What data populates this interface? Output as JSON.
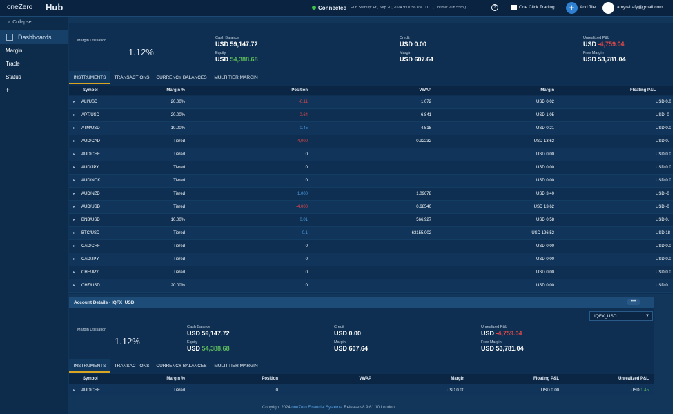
{
  "topbar": {
    "logo": "oneZero",
    "product": "Hub",
    "status": "Connected",
    "startup": "Hub Startup: Fri, Sep 20, 2024 9:07:56 PM UTC ( Uptime: 20h 55m )",
    "help": "?",
    "one_click": "One Click Trading",
    "add_tile": "Add Tile",
    "user": "amyralrafy@gmail.com"
  },
  "sidebar": {
    "collapse": "Collapse",
    "dashboards": "Dashboards",
    "items": [
      "Margin",
      "Trade",
      "Status",
      "+"
    ]
  },
  "panel1": {
    "summary": {
      "utilisation": {
        "label": "Margin Utilisation",
        "value": "1.12%"
      },
      "items": [
        {
          "label": "Cash Balance",
          "currency": "USD",
          "amount": "59,147.72"
        },
        {
          "label": "Equity",
          "currency": "USD",
          "amount": "54,388.68"
        },
        {
          "label": "Credit",
          "currency": "USD",
          "amount": "0.00"
        },
        {
          "label": "Margin",
          "currency": "USD",
          "amount": "607.64"
        },
        {
          "label": "Unrealized P&L",
          "currency": "USD",
          "amount": "-4,759.04"
        },
        {
          "label": "Free Margin",
          "currency": "USD",
          "amount": "53,781.04"
        }
      ]
    },
    "tabs": [
      "INSTRUMENTS",
      "TRANSACTIONS",
      "CURRENCY BALANCES",
      "MULTI TIER MARGIN"
    ],
    "columns": [
      "Symbol",
      "Margin %",
      "Position",
      "VWAP",
      "Margin",
      "Floating P&L"
    ],
    "rows": [
      [
        "ALI/USD",
        "20.00%",
        "-0.11",
        "1.072",
        "USD 0.02",
        "USD 0.0"
      ],
      [
        "APT/USD",
        "20.00%",
        "-0.64",
        "6.841",
        "USD 1.05",
        "USD -0"
      ],
      [
        "ATM/USD",
        "10.00%",
        "0.45",
        "4.518",
        "USD 0.21",
        "USD 0.0"
      ],
      [
        "AUD/CAD",
        "Tiered",
        "-4,000",
        "0.92232",
        "USD 13.62",
        "USD 0."
      ],
      [
        "AUD/CHF",
        "Tiered",
        "0",
        null,
        "USD 0.00",
        "USD 0.0"
      ],
      [
        "AUD/JPY",
        "Tiered",
        "0",
        null,
        "USD 0.00",
        "USD 0.0"
      ],
      [
        "AUD/NOK",
        "Tiered",
        "0",
        null,
        "USD 0.00",
        "USD 0.0"
      ],
      [
        "AUD/NZD",
        "Tiered",
        "1,000",
        "1.09678",
        "USD 3.40",
        "USD -0"
      ],
      [
        "AUD/USD",
        "Tiered",
        "-4,000",
        "0.68540",
        "USD 13.62",
        "USD -0"
      ],
      [
        "BNB/USD",
        "10.00%",
        "0.01",
        "566.927",
        "USD 0.58",
        "USD 0."
      ],
      [
        "BTC/USD",
        "Tiered",
        "0.1",
        "63155.002",
        "USD 126.52",
        "USD 18"
      ],
      [
        "CAD/CHF",
        "Tiered",
        "0",
        null,
        "USD 0.00",
        "USD 0.0"
      ],
      [
        "CAD/JPY",
        "Tiered",
        "0",
        null,
        "USD 0.00",
        "USD 0.0"
      ],
      [
        "CHF/JPY",
        "Tiered",
        "0",
        null,
        "USD 0.00",
        "USD 0.0"
      ],
      [
        "CHZ/USD",
        "20.00%",
        "0",
        null,
        "USD 0.00",
        "USD 0."
      ]
    ]
  },
  "panel2": {
    "title": "Account Details - IQFX_USD",
    "selector": "IQFX_USD",
    "summary": {
      "utilisation": {
        "label": "Margin Utilisation",
        "value": "1.12%"
      },
      "items": [
        {
          "label": "Cash Balance",
          "currency": "USD",
          "amount": "59,147.72"
        },
        {
          "label": "Equity",
          "currency": "USD",
          "amount": "54,388.68"
        },
        {
          "label": "Credit",
          "currency": "USD",
          "amount": "0.00"
        },
        {
          "label": "Margin",
          "currency": "USD",
          "amount": "607.64"
        },
        {
          "label": "Unrealized P&L",
          "currency": "USD",
          "amount": "-4,759.04"
        },
        {
          "label": "Free Margin",
          "currency": "USD",
          "amount": "53,781.04"
        }
      ]
    },
    "tabs": [
      "INSTRUMENTS",
      "TRANSACTIONS",
      "CURRENCY BALANCES",
      "MULTI TIER MARGIN"
    ],
    "columns": [
      "Symbol",
      "Margin %",
      "Position",
      "VWAP",
      "Margin",
      "Floating P&L",
      "Unrealized P&L"
    ],
    "rows": [
      [
        "AUD/CHF",
        "Tiered",
        "0",
        null,
        "USD 0.00",
        "USD 0.00",
        "USD 1.45"
      ]
    ]
  },
  "footer": {
    "copyright": "Copyright 2024",
    "company": "oneZero Financial Systems",
    "release": "Release v8.9.61.10 London"
  }
}
